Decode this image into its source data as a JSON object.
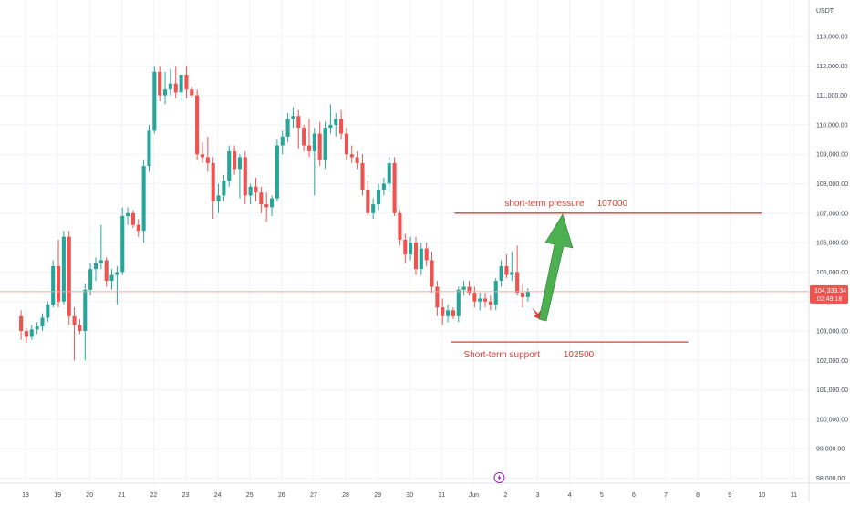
{
  "currency_label": "USDT",
  "price_tag": {
    "price": "104,333.34",
    "countdown": "02:49:18"
  },
  "colors": {
    "up": "#26a69a",
    "down": "#ef5350",
    "annotation": "#e53935",
    "arrow_up": "#4caf50",
    "arrow_down": "#e53935",
    "grid": "#f0f3f7",
    "axis_text": "#434651",
    "current_line": "#f4a6a6",
    "event_marker": "#9c27b0"
  },
  "event_marker_icon": "lightning-icon",
  "annotations": {
    "pressure": {
      "text": "short-term pressure",
      "value": "107000"
    },
    "support": {
      "text": "Short-term support",
      "value": "102500"
    }
  },
  "chart_data": {
    "type": "candlestick",
    "title": "",
    "xlabel": "",
    "ylabel": "",
    "y_range": [
      97900,
      113700
    ],
    "grid": true,
    "y_ticks": [
      "113,000.00",
      "112,000.00",
      "111,000.00",
      "110,000.00",
      "109,000.00",
      "108,000.00",
      "107,000.00",
      "106,000.00",
      "105,000.00",
      "104,000.00",
      "103,000.00",
      "102,000.00",
      "101,000.00",
      "100,000.00",
      "99,000.00",
      "98,000.00"
    ],
    "y_tick_values": [
      113000,
      112000,
      111000,
      110000,
      109000,
      108000,
      107000,
      106000,
      105000,
      104000,
      103000,
      102000,
      101000,
      100000,
      99000,
      98000
    ],
    "x_ticks": [
      "18",
      "19",
      "20",
      "21",
      "22",
      "23",
      "24",
      "25",
      "26",
      "27",
      "28",
      "29",
      "30",
      "31",
      "Jun",
      "2",
      "3",
      "4",
      "5",
      "6",
      "7",
      "8",
      "9",
      "10",
      "11"
    ],
    "x_tick_days": [
      18,
      19,
      20,
      21,
      22,
      23,
      24,
      25,
      26,
      27,
      28,
      29,
      30,
      31,
      32,
      33,
      34,
      35,
      36,
      37,
      38,
      39,
      40,
      41,
      42
    ],
    "candles_per_day": 6,
    "first_candle_day": 17.86,
    "candles": [
      {
        "o": 103500,
        "h": 103700,
        "l": 102700,
        "c": 103000
      },
      {
        "o": 103000,
        "h": 103100,
        "l": 102600,
        "c": 102800
      },
      {
        "o": 102800,
        "h": 103200,
        "l": 102700,
        "c": 103050
      },
      {
        "o": 103050,
        "h": 103300,
        "l": 102900,
        "c": 103150
      },
      {
        "o": 103150,
        "h": 103600,
        "l": 103000,
        "c": 103450
      },
      {
        "o": 103450,
        "h": 104000,
        "l": 103300,
        "c": 103900
      },
      {
        "o": 103900,
        "h": 105400,
        "l": 103800,
        "c": 105200
      },
      {
        "o": 105200,
        "h": 106100,
        "l": 103800,
        "c": 104000
      },
      {
        "o": 104000,
        "h": 106400,
        "l": 103900,
        "c": 106200
      },
      {
        "o": 106200,
        "h": 106400,
        "l": 103200,
        "c": 103500
      },
      {
        "o": 103500,
        "h": 103800,
        "l": 102000,
        "c": 103200
      },
      {
        "o": 103200,
        "h": 103400,
        "l": 102900,
        "c": 103000
      },
      {
        "o": 103000,
        "h": 104600,
        "l": 102000,
        "c": 104400
      },
      {
        "o": 104400,
        "h": 105300,
        "l": 104200,
        "c": 105100
      },
      {
        "o": 105100,
        "h": 105500,
        "l": 104700,
        "c": 105300
      },
      {
        "o": 105300,
        "h": 106600,
        "l": 105100,
        "c": 105400
      },
      {
        "o": 105400,
        "h": 105500,
        "l": 104500,
        "c": 104700
      },
      {
        "o": 104700,
        "h": 105100,
        "l": 104400,
        "c": 104900
      },
      {
        "o": 104900,
        "h": 105200,
        "l": 103900,
        "c": 105000
      },
      {
        "o": 105000,
        "h": 107200,
        "l": 104900,
        "c": 106900
      },
      {
        "o": 106900,
        "h": 107200,
        "l": 106600,
        "c": 107000
      },
      {
        "o": 107000,
        "h": 107100,
        "l": 106500,
        "c": 106600
      },
      {
        "o": 106600,
        "h": 106800,
        "l": 106200,
        "c": 106400
      },
      {
        "o": 106400,
        "h": 108800,
        "l": 106000,
        "c": 108600
      },
      {
        "o": 108600,
        "h": 110000,
        "l": 108400,
        "c": 109800
      },
      {
        "o": 109800,
        "h": 112000,
        "l": 109700,
        "c": 111800
      },
      {
        "o": 111800,
        "h": 112000,
        "l": 110800,
        "c": 111000
      },
      {
        "o": 111000,
        "h": 111800,
        "l": 110700,
        "c": 111200
      },
      {
        "o": 111200,
        "h": 111900,
        "l": 111000,
        "c": 111400
      },
      {
        "o": 111400,
        "h": 112000,
        "l": 110900,
        "c": 111100
      },
      {
        "o": 111100,
        "h": 111700,
        "l": 110800,
        "c": 111700
      },
      {
        "o": 111700,
        "h": 112000,
        "l": 110900,
        "c": 111200
      },
      {
        "o": 111200,
        "h": 111300,
        "l": 110900,
        "c": 111000
      },
      {
        "o": 111000,
        "h": 111200,
        "l": 108800,
        "c": 109000
      },
      {
        "o": 109000,
        "h": 109400,
        "l": 108700,
        "c": 108900
      },
      {
        "o": 108900,
        "h": 109600,
        "l": 108400,
        "c": 108700
      },
      {
        "o": 108700,
        "h": 108900,
        "l": 106800,
        "c": 107400
      },
      {
        "o": 107400,
        "h": 108000,
        "l": 107000,
        "c": 107600
      },
      {
        "o": 107600,
        "h": 108300,
        "l": 107400,
        "c": 108100
      },
      {
        "o": 108100,
        "h": 109300,
        "l": 107900,
        "c": 109100
      },
      {
        "o": 109100,
        "h": 109300,
        "l": 108300,
        "c": 108500
      },
      {
        "o": 108500,
        "h": 109000,
        "l": 107500,
        "c": 108900
      },
      {
        "o": 108900,
        "h": 109100,
        "l": 107300,
        "c": 107600
      },
      {
        "o": 107600,
        "h": 108000,
        "l": 107300,
        "c": 107900
      },
      {
        "o": 107900,
        "h": 108200,
        "l": 107400,
        "c": 107700
      },
      {
        "o": 107700,
        "h": 107900,
        "l": 107000,
        "c": 107300
      },
      {
        "o": 107300,
        "h": 107700,
        "l": 106700,
        "c": 107200
      },
      {
        "o": 107200,
        "h": 107600,
        "l": 106900,
        "c": 107500
      },
      {
        "o": 107500,
        "h": 109500,
        "l": 107400,
        "c": 109300
      },
      {
        "o": 109300,
        "h": 109800,
        "l": 109000,
        "c": 109600
      },
      {
        "o": 109600,
        "h": 110400,
        "l": 109400,
        "c": 110200
      },
      {
        "o": 110200,
        "h": 110600,
        "l": 109900,
        "c": 110300
      },
      {
        "o": 110300,
        "h": 110500,
        "l": 109200,
        "c": 109900
      },
      {
        "o": 109900,
        "h": 110000,
        "l": 109100,
        "c": 109300
      },
      {
        "o": 109300,
        "h": 110200,
        "l": 108900,
        "c": 109100
      },
      {
        "o": 109100,
        "h": 109900,
        "l": 107600,
        "c": 109700
      },
      {
        "o": 109700,
        "h": 110100,
        "l": 108600,
        "c": 108800
      },
      {
        "o": 108800,
        "h": 110100,
        "l": 108500,
        "c": 109900
      },
      {
        "o": 109900,
        "h": 110700,
        "l": 109700,
        "c": 110000
      },
      {
        "o": 110000,
        "h": 110400,
        "l": 109600,
        "c": 110200
      },
      {
        "o": 110200,
        "h": 110500,
        "l": 109500,
        "c": 109700
      },
      {
        "o": 109700,
        "h": 109900,
        "l": 108800,
        "c": 109000
      },
      {
        "o": 109000,
        "h": 109300,
        "l": 108700,
        "c": 108900
      },
      {
        "o": 108900,
        "h": 109100,
        "l": 108500,
        "c": 108700
      },
      {
        "o": 108700,
        "h": 109000,
        "l": 107600,
        "c": 107800
      },
      {
        "o": 107800,
        "h": 108100,
        "l": 106900,
        "c": 107000
      },
      {
        "o": 107000,
        "h": 107500,
        "l": 106800,
        "c": 107300
      },
      {
        "o": 107300,
        "h": 108000,
        "l": 107100,
        "c": 107800
      },
      {
        "o": 107800,
        "h": 108200,
        "l": 107600,
        "c": 108000
      },
      {
        "o": 108000,
        "h": 108900,
        "l": 107700,
        "c": 108700
      },
      {
        "o": 108700,
        "h": 108900,
        "l": 106900,
        "c": 107000
      },
      {
        "o": 107000,
        "h": 107100,
        "l": 105900,
        "c": 106100
      },
      {
        "o": 106100,
        "h": 106300,
        "l": 105300,
        "c": 105600
      },
      {
        "o": 105600,
        "h": 106200,
        "l": 105400,
        "c": 106000
      },
      {
        "o": 106000,
        "h": 106200,
        "l": 104900,
        "c": 105100
      },
      {
        "o": 105100,
        "h": 106000,
        "l": 104900,
        "c": 105800
      },
      {
        "o": 105800,
        "h": 106000,
        "l": 105200,
        "c": 105400
      },
      {
        "o": 105400,
        "h": 105700,
        "l": 104300,
        "c": 104500
      },
      {
        "o": 104500,
        "h": 104700,
        "l": 103500,
        "c": 103800
      },
      {
        "o": 103800,
        "h": 104100,
        "l": 103200,
        "c": 103500
      },
      {
        "o": 103500,
        "h": 103900,
        "l": 103300,
        "c": 103700
      },
      {
        "o": 103700,
        "h": 103800,
        "l": 103400,
        "c": 103500
      },
      {
        "o": 103500,
        "h": 104500,
        "l": 103300,
        "c": 104400
      },
      {
        "o": 104400,
        "h": 104700,
        "l": 104200,
        "c": 104500
      },
      {
        "o": 104500,
        "h": 104700,
        "l": 104200,
        "c": 104300
      },
      {
        "o": 104300,
        "h": 104500,
        "l": 103800,
        "c": 104000
      },
      {
        "o": 104000,
        "h": 104300,
        "l": 103700,
        "c": 104100
      },
      {
        "o": 104100,
        "h": 104300,
        "l": 103800,
        "c": 104000
      },
      {
        "o": 104000,
        "h": 104200,
        "l": 103700,
        "c": 103900
      },
      {
        "o": 103900,
        "h": 104800,
        "l": 103700,
        "c": 104700
      },
      {
        "o": 104700,
        "h": 105400,
        "l": 104500,
        "c": 105200
      },
      {
        "o": 105200,
        "h": 105600,
        "l": 104800,
        "c": 104900
      },
      {
        "o": 104900,
        "h": 105700,
        "l": 104700,
        "c": 105000
      },
      {
        "o": 105000,
        "h": 105900,
        "l": 104200,
        "c": 104300
      },
      {
        "o": 104300,
        "h": 104600,
        "l": 103800,
        "c": 104150
      },
      {
        "o": 104150,
        "h": 104450,
        "l": 104000,
        "c": 104333
      }
    ],
    "current_price": 104333.34,
    "levels": [
      {
        "label": "short-term pressure",
        "value": 107000,
        "from_day": 31.4,
        "to_day": 41.0
      },
      {
        "label": "Short-term support",
        "value": 102500,
        "from_day": 33.0,
        "to_day": 38.7
      }
    ]
  }
}
